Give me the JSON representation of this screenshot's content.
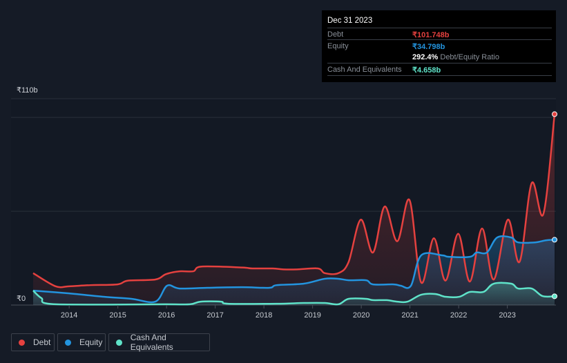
{
  "tooltip": {
    "date": "Dec 31 2023",
    "debt_label": "Debt",
    "debt_value": "₹101.748b",
    "equity_label": "Equity",
    "equity_value": "₹34.798b",
    "ratio_value": "292.4%",
    "ratio_label": "Debt/Equity Ratio",
    "cash_label": "Cash And Equivalents",
    "cash_value": "₹4.658b"
  },
  "legend": [
    {
      "label": "Debt",
      "color": "#e5413f"
    },
    {
      "label": "Equity",
      "color": "#2394df"
    },
    {
      "label": "Cash And Equivalents",
      "color": "#5fe3c9"
    }
  ],
  "chart_data": {
    "type": "line",
    "title": "",
    "xlabel": "",
    "ylabel": "",
    "y_tick_labels": [
      "₹0",
      "₹110b"
    ],
    "ylim": [
      0,
      110
    ],
    "xlim": [
      2013.26,
      2023.97
    ],
    "gridlines": [
      0,
      50,
      100,
      110
    ],
    "x_ticks": [
      2014,
      2015,
      2016,
      2017,
      2018,
      2019,
      2020,
      2021,
      2022,
      2023
    ],
    "x_tick_labels": [
      "2014",
      "2015",
      "2016",
      "2017",
      "2018",
      "2019",
      "2020",
      "2021",
      "2022",
      "2023"
    ],
    "legend_position": "bottom-left",
    "series": [
      {
        "name": "Debt",
        "color": "#e5413f",
        "x": [
          2013.26,
          2013.72,
          2014.0,
          2014.43,
          2014.99,
          2015.21,
          2015.77,
          2015.99,
          2016.27,
          2016.55,
          2016.72,
          2017.55,
          2017.76,
          2018.18,
          2018.4,
          2018.68,
          2019.11,
          2019.25,
          2019.53,
          2019.74,
          2019.99,
          2020.24,
          2020.48,
          2020.74,
          2020.99,
          2021.23,
          2021.49,
          2021.73,
          2021.99,
          2022.23,
          2022.48,
          2022.72,
          2023.01,
          2023.25,
          2023.5,
          2023.74,
          2023.97
        ],
        "y": [
          17,
          10,
          10,
          10.6,
          11,
          13,
          13.6,
          16.5,
          18,
          18,
          20.5,
          20,
          19.5,
          19.5,
          19,
          19,
          19.5,
          17,
          17,
          23,
          45.5,
          28,
          52.5,
          34,
          56,
          12,
          35.6,
          13,
          38,
          12.5,
          40.8,
          13.6,
          45.5,
          23,
          65,
          48.5,
          101.748
        ]
      },
      {
        "name": "Equity",
        "color": "#2394df",
        "x": [
          2013.26,
          2014.0,
          2014.71,
          2015.28,
          2015.77,
          2016.01,
          2016.27,
          2016.84,
          2017.55,
          2018.11,
          2018.26,
          2018.82,
          2019.25,
          2019.53,
          2019.74,
          2020.1,
          2020.24,
          2020.67,
          2020.81,
          2021.02,
          2021.23,
          2021.66,
          2021.8,
          2022.23,
          2022.37,
          2022.58,
          2022.79,
          2023.08,
          2023.22,
          2023.57,
          2023.79,
          2023.97
        ],
        "y": [
          7.7,
          6.2,
          4.4,
          3.3,
          1.8,
          10.3,
          8.8,
          9.2,
          9.5,
          9.2,
          10.6,
          11.4,
          14,
          14,
          13.2,
          13.2,
          11,
          11,
          10.3,
          10.3,
          26.5,
          26.5,
          25.7,
          25.7,
          28,
          28,
          36,
          36,
          33.4,
          33.4,
          34.5,
          34.798
        ]
      },
      {
        "name": "Cash And Equivalents",
        "color": "#5fe3c9",
        "x": [
          2013.26,
          2013.43,
          2013.72,
          2015.99,
          2016.48,
          2016.7,
          2017.12,
          2017.26,
          2018.26,
          2018.82,
          2019.25,
          2019.53,
          2019.74,
          2020.1,
          2020.24,
          2020.52,
          2020.74,
          2020.95,
          2021.23,
          2021.52,
          2021.73,
          2022.01,
          2022.23,
          2022.51,
          2022.72,
          2023.08,
          2023.22,
          2023.5,
          2023.72,
          2023.97
        ],
        "y": [
          7.7,
          3.7,
          0.4,
          0.4,
          0.4,
          1.8,
          1.8,
          0.7,
          0.7,
          1.1,
          1.1,
          0.4,
          3.3,
          3.3,
          2.6,
          2.6,
          1.8,
          1.8,
          5.5,
          5.9,
          4.4,
          4.4,
          7,
          7,
          11.4,
          11.4,
          8.8,
          8.8,
          4.8,
          4.658
        ]
      }
    ]
  }
}
